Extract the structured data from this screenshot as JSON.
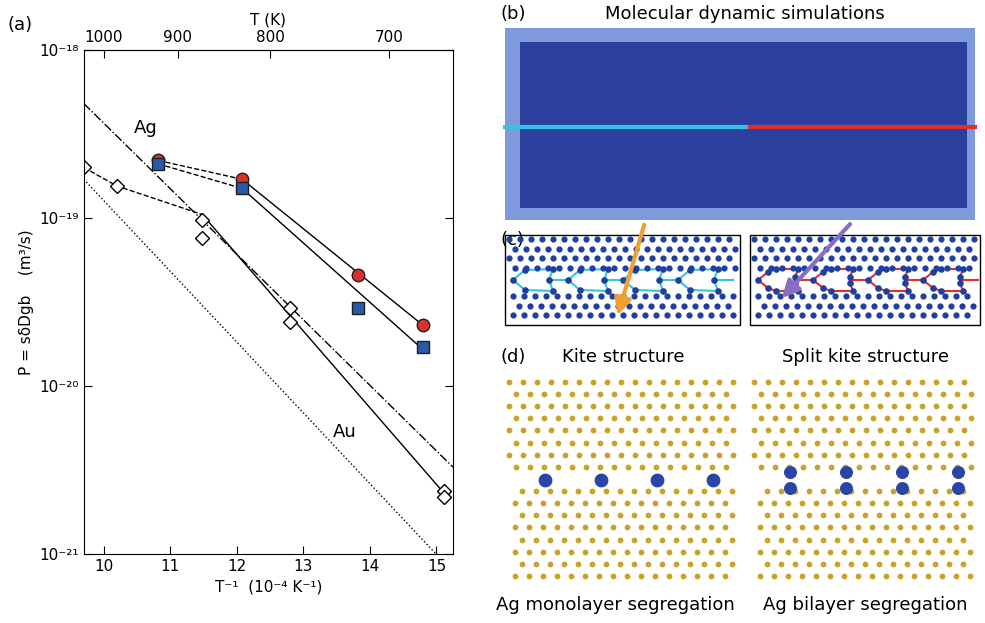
{
  "chart_data": {
    "type": "scatter",
    "title": "(a)",
    "x_label": "T⁻¹  (10⁻⁴ K⁻¹)",
    "y_label": "P = sδDgb    (m³/s)",
    "x2_label": "T (K)",
    "log": "y",
    "xlim": [
      9.7,
      15.25
    ],
    "xticks": [
      10,
      11,
      12,
      13,
      14,
      15
    ],
    "x2ticks": [
      1000,
      900,
      800,
      700
    ],
    "ylim": [
      1e-21,
      1e-18
    ],
    "yticks": [
      {
        "value": 1e-21,
        "label": "10⁻²¹"
      },
      {
        "value": 1e-20,
        "label": "10⁻²⁰"
      },
      {
        "value": 1e-19,
        "label": "10⁻¹⁹"
      },
      {
        "value": 1e-18,
        "label": "10⁻¹⁸"
      }
    ],
    "annotations": [
      {
        "text": "Ag",
        "x": 10.45,
        "y": 3.2e-19
      },
      {
        "text": "Au",
        "x": 13.45,
        "y": 5e-21
      }
    ],
    "series": [
      {
        "color": "#000000",
        "marker": "none",
        "line_style": "dashed",
        "x": [
          10.82,
          12.08
        ],
        "values": [
          2.2e-19,
          1.7e-19
        ]
      },
      {
        "color": "#000000",
        "marker": "none",
        "line_style": "dashed",
        "x": [
          10.82,
          12.08
        ],
        "values": [
          2.1e-19,
          1.5e-19
        ]
      },
      {
        "color": "#000000",
        "marker": "none",
        "line_style": "solid",
        "x": [
          12.08,
          14.8
        ],
        "values": [
          1.7e-19,
          2.3e-20
        ]
      },
      {
        "color": "#000000",
        "marker": "none",
        "line_style": "solid",
        "x": [
          12.08,
          14.8
        ],
        "values": [
          1.5e-19,
          1.65e-20
        ]
      },
      {
        "color": "#000000",
        "marker": "none",
        "line_style": "dashed",
        "x": [
          9.7,
          10.2,
          11.48
        ],
        "values": [
          2e-19,
          1.55e-19,
          1.05e-19
        ]
      },
      {
        "color": "#000000",
        "marker": "none",
        "line_style": "solid",
        "x": [
          11.48,
          15.12
        ],
        "values": [
          1.05e-19,
          2.3e-21
        ]
      },
      {
        "color": "#000000",
        "marker": "none",
        "line_style": "dashdot",
        "x": [
          9.7,
          15.25
        ],
        "values": [
          4.8e-19,
          3.3e-21
        ]
      },
      {
        "color": "#000000",
        "marker": "none",
        "line_style": "dotted",
        "x": [
          9.7,
          15.0
        ],
        "values": [
          1.7e-19,
          1e-21
        ]
      },
      {
        "color": "#d9302c",
        "marker": "circle",
        "line_style": "none",
        "x": [
          10.82,
          12.08,
          13.82,
          14.8
        ],
        "values": [
          2.2e-19,
          1.7e-19,
          4.6e-20,
          2.3e-20
        ]
      },
      {
        "color": "#2b5aa8",
        "marker": "square",
        "line_style": "none",
        "x": [
          10.82,
          12.08,
          13.82,
          14.8
        ],
        "values": [
          2.1e-19,
          1.5e-19,
          2.9e-20,
          1.7e-20
        ]
      },
      {
        "color": "#000000",
        "marker": "diamond_open",
        "line_style": "none",
        "x": [
          9.7,
          10.2,
          11.48,
          11.48,
          12.8,
          12.8,
          15.12,
          15.12
        ],
        "values": [
          2e-19,
          1.55e-19,
          9.7e-20,
          7.6e-20,
          2.9e-20,
          2.4e-20,
          2.4e-21,
          2.2e-21
        ]
      }
    ]
  },
  "diagram": {
    "b": {
      "label": "(b)",
      "title": "Molecular dynamic simulations"
    },
    "c": {
      "label": "(c)",
      "left_caption": "Kite structure",
      "right_caption": "Split kite structure"
    },
    "d": {
      "label": "(d)",
      "left_caption": "Ag monolayer segregation",
      "right_caption": "Ag bilayer segregation"
    }
  }
}
